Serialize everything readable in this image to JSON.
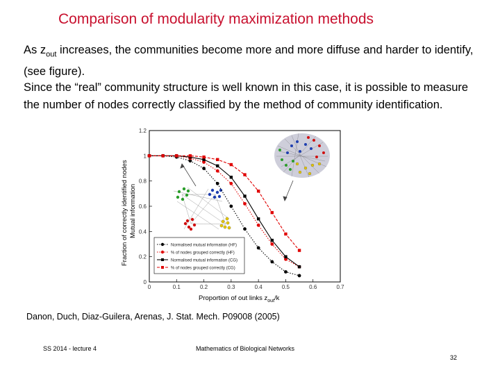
{
  "slide": {
    "title": "Comparison of modularity maximization methods",
    "para1_pre": "As z",
    "para1_sub": "out",
    "para1_post": " increases, the communities become more and more diffuse and harder to identify, (see figure).",
    "para2": "Since the “real” community structure is well known in this case, it is possible to measure the number of nodes correctly classified by the method of community identification.",
    "citation": "Danon, Duch, Diaz-Guilera, Arenas, J. Stat. Mech. P09008 (2005)",
    "footer_left": "SS 2014 - lecture 4",
    "footer_center": "Mathematics of Biological Networks",
    "page_number": "32"
  },
  "colors": {
    "title": "#c8102e",
    "series_black": "#000000",
    "series_red": "#e00000"
  },
  "chart_data": {
    "type": "line",
    "title": "",
    "xlabel_pre": "Proportion of out links z",
    "xlabel_sub": "out",
    "xlabel_post": "/k",
    "ylabel_1": "Fraction of correctly identified nodes",
    "ylabel_2": "Mutual information",
    "xlim": [
      0,
      0.7
    ],
    "ylim": [
      0,
      1.2
    ],
    "x_ticks": [
      "0",
      "0.1",
      "0.2",
      "0.3",
      "0.4",
      "0.5",
      "0.6",
      "0.7"
    ],
    "y_ticks": [
      "0",
      "0.2",
      "0.4",
      "0.6",
      "0.8",
      "1",
      "1.2"
    ],
    "legend_position": "bottom-right",
    "series": [
      {
        "name": "Normalised mutual information (HF)",
        "color": "#000000",
        "style": "dotted",
        "marker": "circle",
        "x": [
          0.0,
          0.05,
          0.1,
          0.15,
          0.2,
          0.25,
          0.3,
          0.35,
          0.4,
          0.45,
          0.5,
          0.55
        ],
        "y": [
          1.0,
          1.0,
          0.99,
          0.96,
          0.9,
          0.78,
          0.6,
          0.42,
          0.27,
          0.16,
          0.08,
          0.05
        ]
      },
      {
        "name": "% of nodes grouped correctly (HF)",
        "color": "#e00000",
        "style": "dotted",
        "marker": "circle",
        "x": [
          0.0,
          0.05,
          0.1,
          0.15,
          0.2,
          0.25,
          0.3,
          0.35,
          0.4,
          0.45,
          0.5,
          0.55
        ],
        "y": [
          1.0,
          1.0,
          1.0,
          0.98,
          0.95,
          0.88,
          0.78,
          0.62,
          0.45,
          0.3,
          0.18,
          0.12
        ]
      },
      {
        "name": "Normalised mutual information (CG)",
        "color": "#000000",
        "style": "solid",
        "marker": "square",
        "x": [
          0.0,
          0.05,
          0.1,
          0.15,
          0.2,
          0.25,
          0.3,
          0.35,
          0.4,
          0.45,
          0.5,
          0.55
        ],
        "y": [
          1.0,
          1.0,
          1.0,
          0.99,
          0.97,
          0.92,
          0.83,
          0.68,
          0.5,
          0.33,
          0.2,
          0.12
        ]
      },
      {
        "name": "% of nodes grouped correctly (CG)",
        "color": "#e00000",
        "style": "dashed",
        "marker": "square",
        "x": [
          0.0,
          0.05,
          0.1,
          0.15,
          0.2,
          0.25,
          0.3,
          0.35,
          0.4,
          0.45,
          0.5,
          0.55
        ],
        "y": [
          1.0,
          1.0,
          1.0,
          1.0,
          0.99,
          0.97,
          0.93,
          0.85,
          0.72,
          0.55,
          0.38,
          0.25
        ]
      }
    ]
  }
}
